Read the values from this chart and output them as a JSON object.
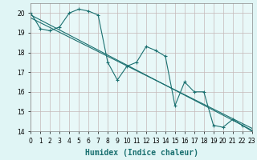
{
  "xlabel": "Humidex (Indice chaleur)",
  "bg_color": "#e0f5f5",
  "plot_bg": "#e8f8f8",
  "grid_color": "#c5b8b8",
  "line_color": "#1a7070",
  "line1_x": [
    0,
    1,
    2,
    3,
    4,
    5,
    6,
    7,
    8,
    9,
    10,
    11,
    12,
    13,
    14,
    15,
    16,
    17,
    18,
    19,
    20,
    21,
    22,
    23
  ],
  "line1_y": [
    20.0,
    19.2,
    19.1,
    19.3,
    20.0,
    20.2,
    20.1,
    19.9,
    17.5,
    16.6,
    17.3,
    17.5,
    18.3,
    18.1,
    17.8,
    15.3,
    16.5,
    16.0,
    16.0,
    14.3,
    14.2,
    14.6,
    14.3,
    14.0
  ],
  "line2_x": [
    0,
    23
  ],
  "line2_y": [
    19.9,
    14.05
  ],
  "line3_x": [
    0,
    23
  ],
  "line3_y": [
    19.75,
    14.15
  ],
  "xlim": [
    0,
    23
  ],
  "ylim": [
    14,
    20.5
  ],
  "yticks": [
    14,
    15,
    16,
    17,
    18,
    19,
    20
  ],
  "xticks": [
    0,
    1,
    2,
    3,
    4,
    5,
    6,
    7,
    8,
    9,
    10,
    11,
    12,
    13,
    14,
    15,
    16,
    17,
    18,
    19,
    20,
    21,
    22,
    23
  ],
  "xlabel_fontsize": 7,
  "tick_fontsize": 5.5
}
